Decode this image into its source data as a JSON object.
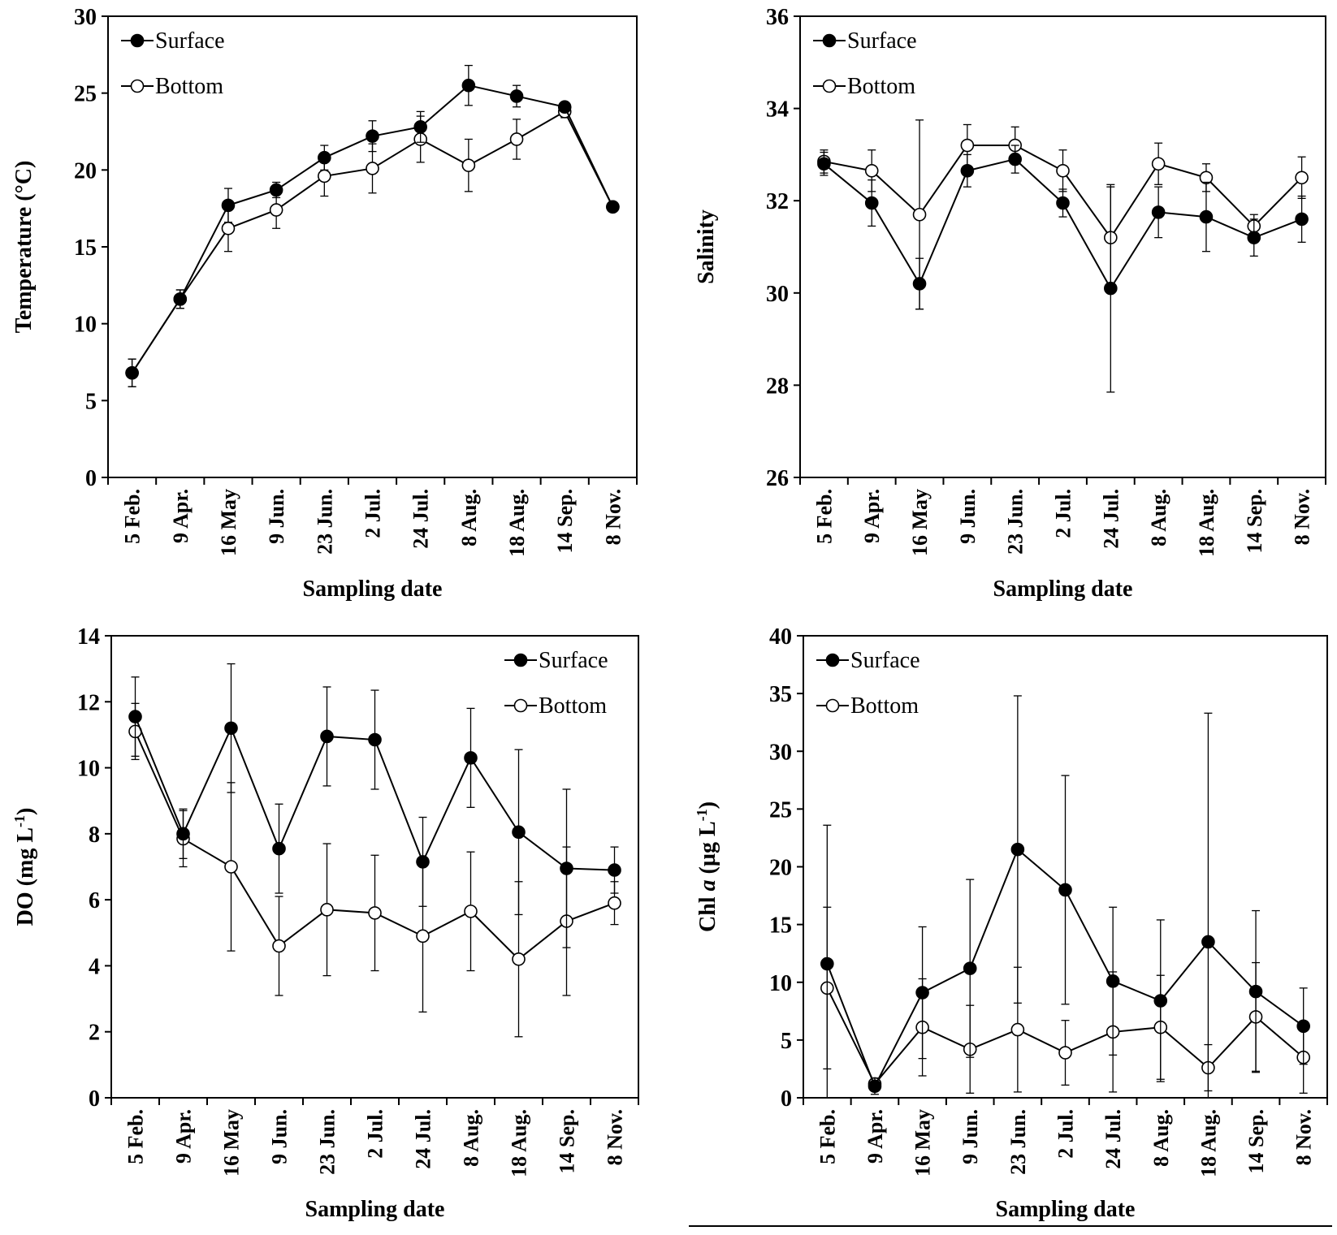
{
  "chart_data": [
    {
      "type": "line",
      "title": "",
      "xlabel": "Sampling date",
      "ylabel": "Temperature (°C)",
      "ylim": [
        0,
        30
      ],
      "yticks": [
        "0",
        "5",
        "10",
        "15",
        "20",
        "25",
        "30"
      ],
      "categories": [
        "5 Feb.",
        "9 Apr.",
        "16 May",
        "9 Jun.",
        "23 Jun.",
        "2 Jul.",
        "24 Jul.",
        "8 Aug.",
        "18 Aug.",
        "14 Sep.",
        "8 Nov."
      ],
      "legend_position": "top-left",
      "series": [
        {
          "name": "Surface",
          "marker": "filled",
          "values": [
            6.8,
            11.6,
            17.7,
            18.7,
            20.8,
            22.2,
            22.8,
            25.5,
            24.8,
            24.1,
            17.6
          ],
          "error": [
            0.9,
            0.6,
            1.1,
            0.5,
            0.8,
            1.0,
            1.0,
            1.3,
            0.7,
            0.3,
            0.3
          ]
        },
        {
          "name": "Bottom",
          "marker": "open",
          "values": [
            6.8,
            11.6,
            16.2,
            17.4,
            19.6,
            20.1,
            22.0,
            20.3,
            22.0,
            23.8,
            17.6
          ],
          "error": [
            0.9,
            0.6,
            1.5,
            1.2,
            1.3,
            1.6,
            1.5,
            1.7,
            1.3,
            0.4,
            0.3
          ]
        }
      ]
    },
    {
      "type": "line",
      "title": "",
      "xlabel": "Sampling date",
      "ylabel": "Salinity",
      "ylim": [
        26,
        36
      ],
      "yticks": [
        "26",
        "28",
        "30",
        "32",
        "34",
        "36"
      ],
      "categories": [
        "5 Feb.",
        "9 Apr.",
        "16 May",
        "9 Jun.",
        "23 Jun.",
        "2 Jul.",
        "24 Jul.",
        "8 Aug.",
        "18 Aug.",
        "14 Sep.",
        "8 Nov."
      ],
      "legend_position": "top-left",
      "series": [
        {
          "name": "Surface",
          "marker": "filled",
          "values": [
            32.8,
            31.95,
            30.2,
            32.65,
            32.9,
            31.95,
            30.1,
            31.75,
            31.65,
            31.2,
            31.6
          ],
          "error": [
            0.25,
            0.5,
            0.55,
            0.35,
            0.3,
            0.3,
            2.25,
            0.55,
            0.75,
            0.4,
            0.5
          ]
        },
        {
          "name": "Bottom",
          "marker": "open",
          "values": [
            32.85,
            32.65,
            31.7,
            33.2,
            33.2,
            32.65,
            31.2,
            32.8,
            32.5,
            31.45,
            32.5
          ],
          "error": [
            0.25,
            0.45,
            2.05,
            0.45,
            0.4,
            0.45,
            1.1,
            0.45,
            0.3,
            0.25,
            0.45
          ]
        }
      ]
    },
    {
      "type": "line",
      "title": "",
      "xlabel": "Sampling date",
      "ylabel": "DO (mg L-1)",
      "ylim": [
        0,
        14
      ],
      "yticks": [
        "0",
        "2",
        "4",
        "6",
        "8",
        "10",
        "12",
        "14"
      ],
      "categories": [
        "5 Feb.",
        "9 Apr.",
        "16 May",
        "9 Jun.",
        "23 Jun.",
        "2 Jul.",
        "24 Jul.",
        "8 Aug.",
        "18 Aug.",
        "14 Sep.",
        "8 Nov."
      ],
      "legend_position": "top-right",
      "series": [
        {
          "name": "Surface",
          "marker": "filled",
          "values": [
            11.55,
            8.0,
            11.2,
            7.55,
            10.95,
            10.85,
            7.15,
            10.3,
            8.05,
            6.95,
            6.9
          ],
          "error": [
            1.2,
            0.75,
            1.95,
            1.35,
            1.5,
            1.5,
            1.35,
            1.5,
            2.5,
            2.4,
            0.7
          ]
        },
        {
          "name": "Bottom",
          "marker": "open",
          "values": [
            11.1,
            7.85,
            7.0,
            4.6,
            5.7,
            5.6,
            4.9,
            5.65,
            4.2,
            5.35,
            5.9
          ],
          "error": [
            0.85,
            0.85,
            2.55,
            1.5,
            2.0,
            1.75,
            2.3,
            1.8,
            2.35,
            2.25,
            0.65
          ]
        }
      ]
    },
    {
      "type": "line",
      "title": "",
      "xlabel": "Sampling date",
      "ylabel": "Chl a (µg L-1)",
      "ylim": [
        0,
        40
      ],
      "yticks": [
        "0",
        "5",
        "10",
        "15",
        "20",
        "25",
        "30",
        "35",
        "40"
      ],
      "categories": [
        "5 Feb.",
        "9 Apr.",
        "16 May",
        "9 Jun.",
        "23 Jun.",
        "2 Jul.",
        "24 Jul.",
        "8 Aug.",
        "18 Aug.",
        "14 Sep.",
        "8 Nov."
      ],
      "legend_position": "top-left",
      "series": [
        {
          "name": "Surface",
          "marker": "filled",
          "values": [
            11.6,
            1.0,
            9.1,
            11.2,
            21.5,
            18.0,
            10.1,
            8.4,
            13.5,
            9.2,
            6.2
          ],
          "error": [
            12.0,
            0.7,
            5.7,
            7.7,
            13.3,
            9.9,
            6.4,
            7.0,
            19.8,
            7.0,
            3.3
          ]
        },
        {
          "name": "Bottom",
          "marker": "open",
          "values": [
            9.5,
            1.2,
            6.1,
            4.2,
            5.9,
            3.9,
            5.7,
            6.1,
            2.6,
            7.0,
            3.5
          ],
          "error": [
            7.0,
            0.5,
            4.2,
            3.8,
            5.4,
            2.8,
            5.2,
            4.5,
            2.0,
            4.7,
            3.1
          ]
        }
      ]
    }
  ]
}
